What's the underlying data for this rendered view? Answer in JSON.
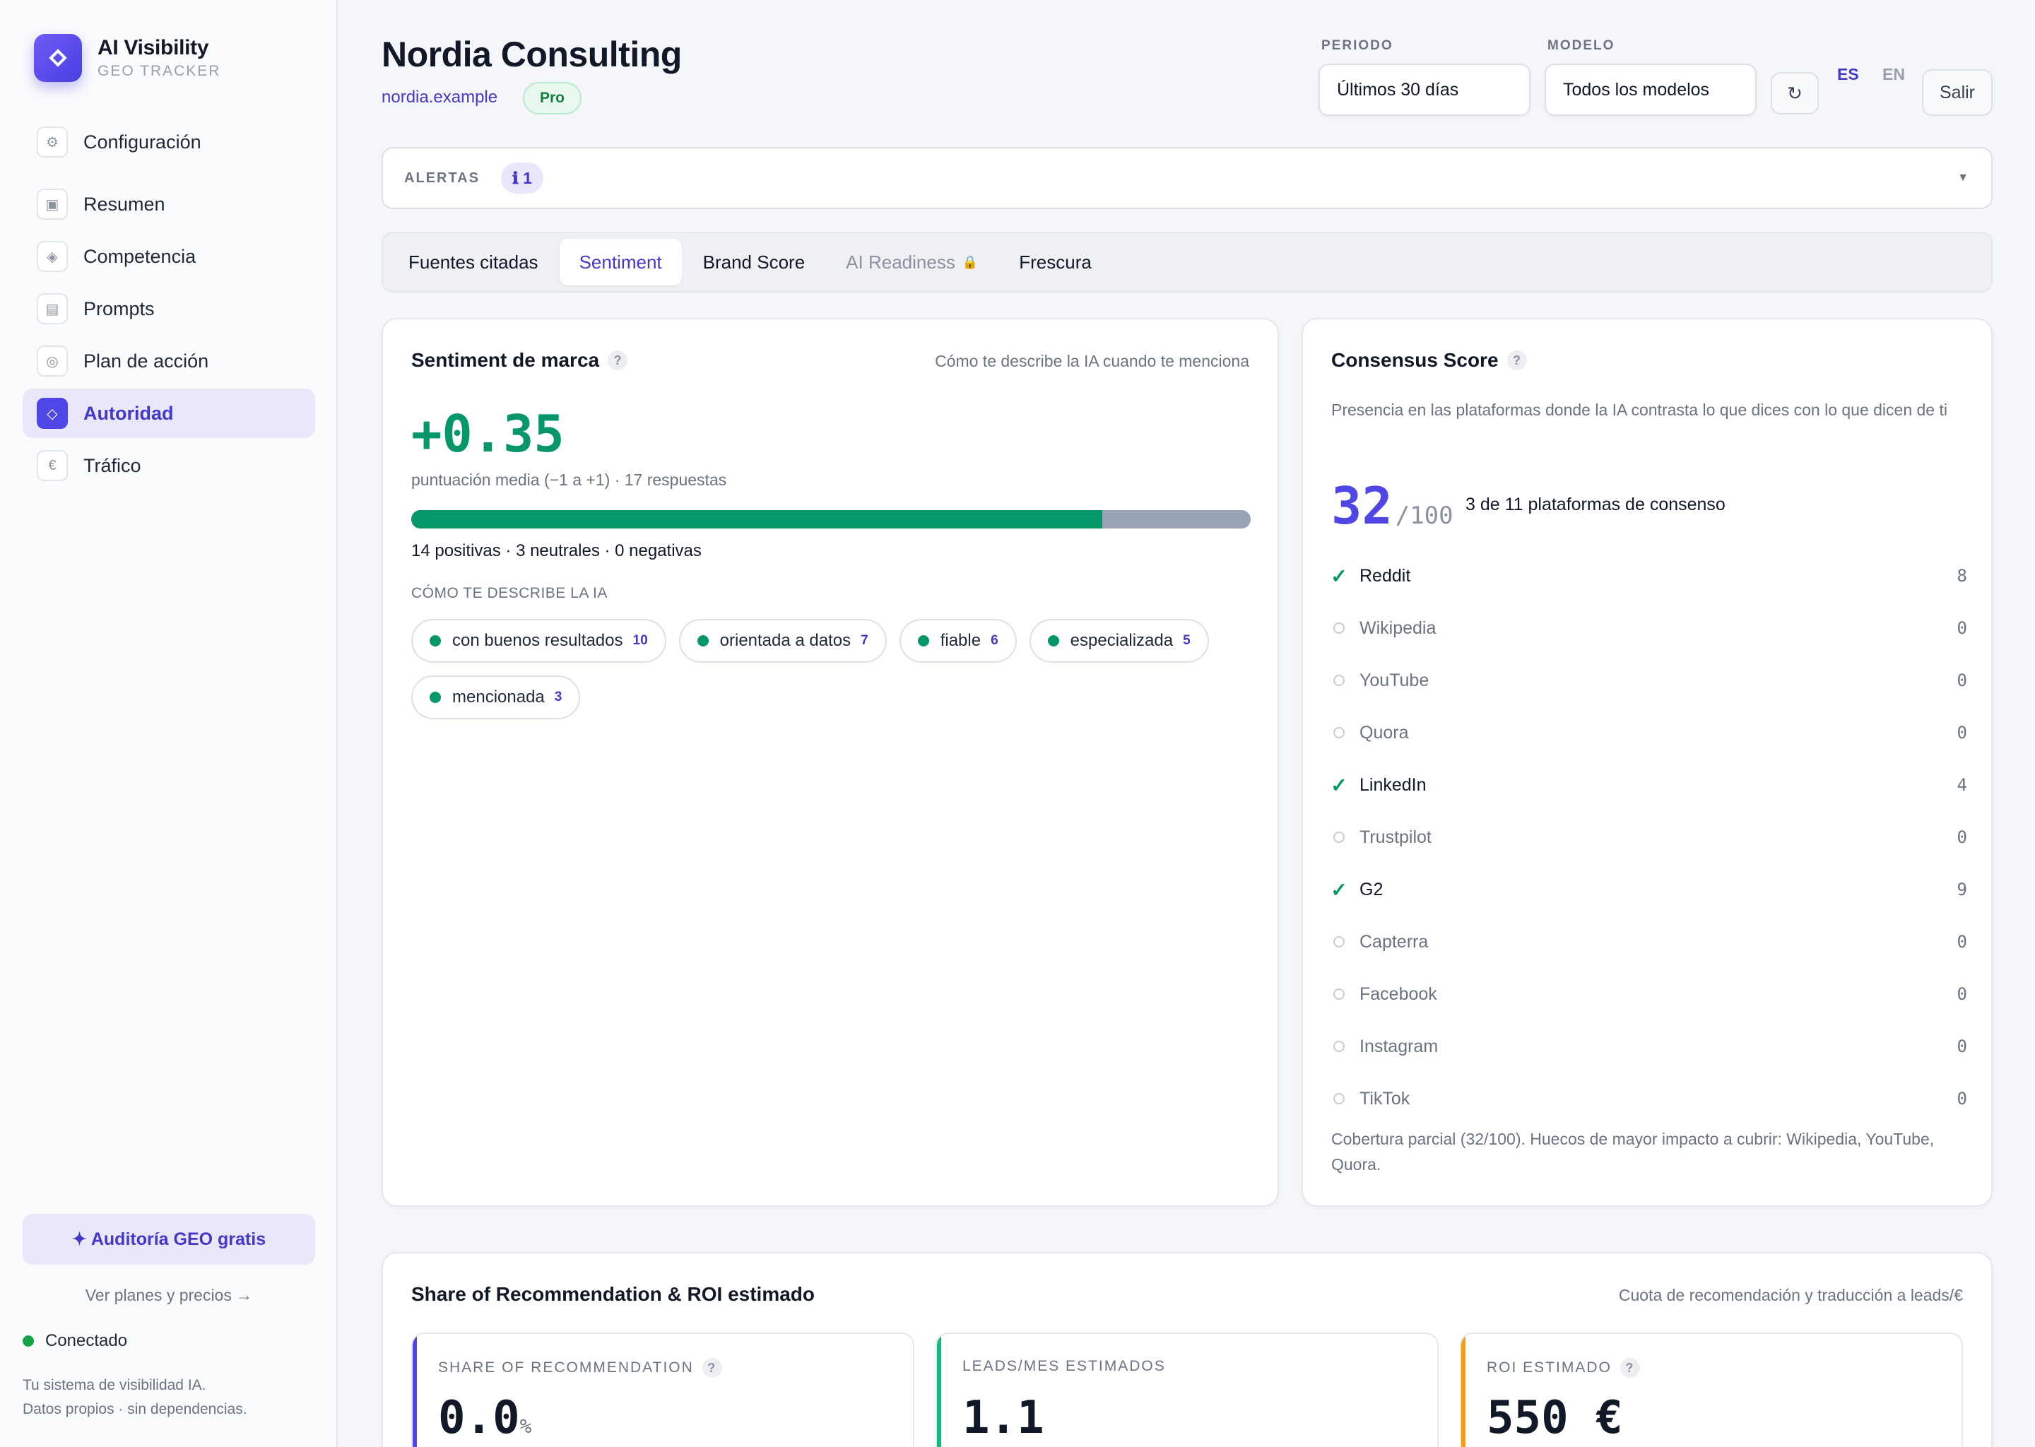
{
  "brand": {
    "title": "AI Visibility",
    "subtitle": "GEO TRACKER"
  },
  "sidebar": {
    "items": [
      {
        "label": "Configuración",
        "icon": "gear-icon",
        "glyph": "⚙"
      },
      {
        "label": "Resumen",
        "icon": "square-icon",
        "glyph": "▣"
      },
      {
        "label": "Competencia",
        "icon": "diamond-icon",
        "glyph": "◈"
      },
      {
        "label": "Prompts",
        "icon": "list-icon",
        "glyph": "▤"
      },
      {
        "label": "Plan de acción",
        "icon": "target-icon",
        "glyph": "◎"
      },
      {
        "label": "Autoridad",
        "icon": "diamond-icon",
        "glyph": "◇"
      },
      {
        "label": "Tráfico",
        "icon": "euro-icon",
        "glyph": "€"
      }
    ],
    "active_index": 5,
    "audit_button": "✦ Auditoría GEO gratis",
    "plans_link": "Ver planes y precios →",
    "status": "Conectado",
    "tagline_1": "Tu sistema de visibilidad IA.",
    "tagline_2": "Datos propios · sin dependencias."
  },
  "header": {
    "title": "Nordia Consulting",
    "domain": "nordia.example",
    "plan_badge": "Pro",
    "period_label": "PERIODO",
    "period_value": "Últimos 30 días",
    "model_label": "MODELO",
    "model_value": "Todos los modelos",
    "refresh_glyph": "↻",
    "lang_es": "ES",
    "lang_en": "EN",
    "active_lang": "ES",
    "logout": "Salir"
  },
  "alerts": {
    "label": "ALERTAS",
    "count": "ℹ 1",
    "chevron": "▼"
  },
  "tabs": [
    {
      "label": "Fuentes citadas",
      "state": "normal"
    },
    {
      "label": "Sentiment",
      "state": "active"
    },
    {
      "label": "Brand Score",
      "state": "normal"
    },
    {
      "label": "AI Readiness",
      "state": "locked"
    },
    {
      "label": "Frescura",
      "state": "normal"
    }
  ],
  "sentiment": {
    "title": "Sentiment de marca",
    "note": "Cómo te describe la IA cuando te menciona",
    "score": "+0.35",
    "score_sub": "puntuación media (−1 a +1) · 17 respuestas",
    "positive": 14,
    "neutral": 3,
    "negative": 0,
    "counts_text": "14 positivas · 3 neutrales · 0 negativas",
    "describe_label": "CÓMO TE DESCRIBE LA IA",
    "descriptors": [
      {
        "label": "con buenos resultados",
        "count": "10"
      },
      {
        "label": "orientada a datos",
        "count": "7"
      },
      {
        "label": "fiable",
        "count": "6"
      },
      {
        "label": "especializada",
        "count": "5"
      },
      {
        "label": "mencionada",
        "count": "3"
      }
    ]
  },
  "consensus": {
    "title": "Consensus Score",
    "subtitle": "Presencia en las plataformas donde la IA contrasta lo que dices con lo que dicen de ti",
    "score": "32",
    "max": "/100",
    "summary": "3 de 11 plataformas de consenso",
    "platforms": [
      {
        "name": "Reddit",
        "present": true,
        "count": "8"
      },
      {
        "name": "Wikipedia",
        "present": false,
        "count": "0"
      },
      {
        "name": "YouTube",
        "present": false,
        "count": "0"
      },
      {
        "name": "Quora",
        "present": false,
        "count": "0"
      },
      {
        "name": "LinkedIn",
        "present": true,
        "count": "4"
      },
      {
        "name": "Trustpilot",
        "present": false,
        "count": "0"
      },
      {
        "name": "G2",
        "present": true,
        "count": "9"
      },
      {
        "name": "Capterra",
        "present": false,
        "count": "0"
      },
      {
        "name": "Facebook",
        "present": false,
        "count": "0"
      },
      {
        "name": "Instagram",
        "present": false,
        "count": "0"
      },
      {
        "name": "TikTok",
        "present": false,
        "count": "0"
      }
    ],
    "footer": "Cobertura parcial (32/100). Huecos de mayor impacto a cubrir: Wikipedia, YouTube, Quora."
  },
  "share": {
    "title": "Share of Recommendation & ROI estimado",
    "note": "Cuota de recomendación y traducción a leads/€",
    "metrics": [
      {
        "label": "SHARE OF RECOMMENDATION",
        "value": "0.0",
        "unit": "%",
        "help": true,
        "color": "#4f46e5"
      },
      {
        "label": "LEADS/MES ESTIMADOS",
        "value": "1.1",
        "unit": "",
        "help": false,
        "color": "#10b981"
      },
      {
        "label": "ROI ESTIMADO",
        "value": "550 €",
        "unit": "",
        "help": true,
        "color": "#f59e0b"
      }
    ]
  },
  "colors": {
    "accent": "#4f46e5",
    "positive": "#059669",
    "neutral": "#9aa3b5",
    "warning": "#f59e0b"
  }
}
